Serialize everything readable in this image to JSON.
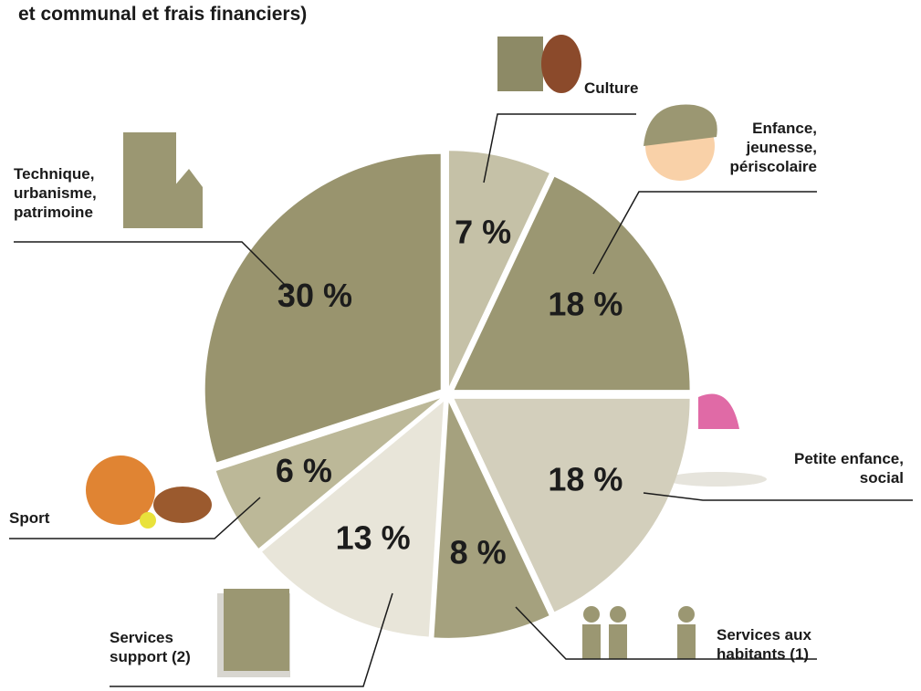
{
  "chart_data": {
    "type": "pie",
    "title": "et communal et frais financiers)",
    "categories": [
      "Culture",
      "Enfance, jeunesse, périscolaire",
      "Petite enfance, social",
      "Services aux habitants (1)",
      "Services support (2)",
      "Sport",
      "Technique, urbanisme, patrimoine"
    ],
    "values": [
      7,
      18,
      18,
      8,
      13,
      6,
      30
    ],
    "value_labels": [
      "7 %",
      "18 %",
      "18 %",
      "8 %",
      "13 %",
      "6 %",
      "30 %"
    ],
    "colors": [
      "#c5c1a7",
      "#9b9772",
      "#d3cfbc",
      "#a5a17e",
      "#e8e5d9",
      "#bcb898",
      "#99946e"
    ]
  }
}
